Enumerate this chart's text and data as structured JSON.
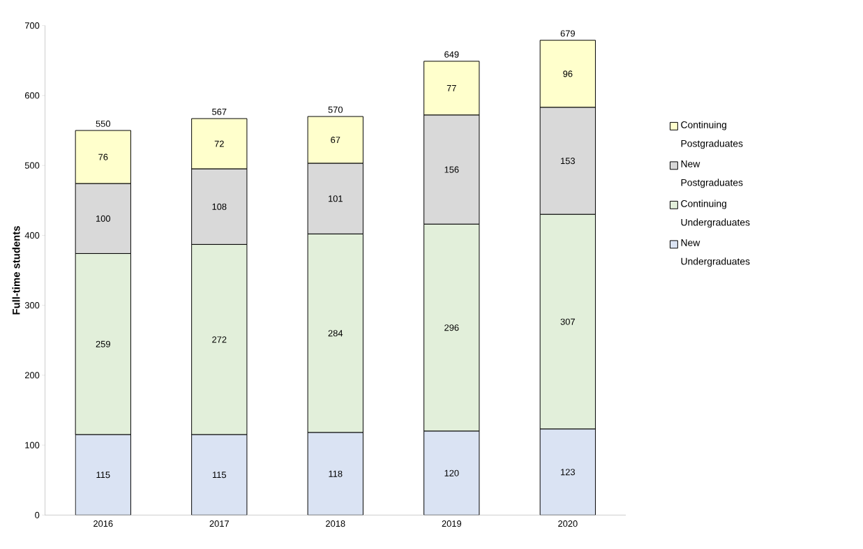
{
  "chart_data": {
    "type": "bar",
    "stacked": true,
    "ylabel": "Full-time students",
    "categories": [
      "2016",
      "2017",
      "2018",
      "2019",
      "2020"
    ],
    "series": [
      {
        "name": "New Undergraduates",
        "color": "#dae3f3",
        "values": [
          115,
          115,
          118,
          120,
          123
        ]
      },
      {
        "name": "Continuing Undergraduates",
        "color": "#e2efda",
        "values": [
          259,
          272,
          284,
          296,
          307
        ]
      },
      {
        "name": "New Postgraduates",
        "color": "#d9d9d9",
        "values": [
          100,
          108,
          101,
          156,
          153
        ]
      },
      {
        "name": "Continuing Postgraduates",
        "color": "#ffffcc",
        "values": [
          76,
          72,
          67,
          77,
          96
        ]
      }
    ],
    "totals": [
      "550",
      "567",
      "570",
      "649",
      "679"
    ],
    "ylim": [
      0,
      700
    ],
    "yticks": [
      0,
      100,
      200,
      300,
      400,
      500,
      600,
      700
    ],
    "data_labels": true,
    "legend": "right",
    "grid": false
  }
}
